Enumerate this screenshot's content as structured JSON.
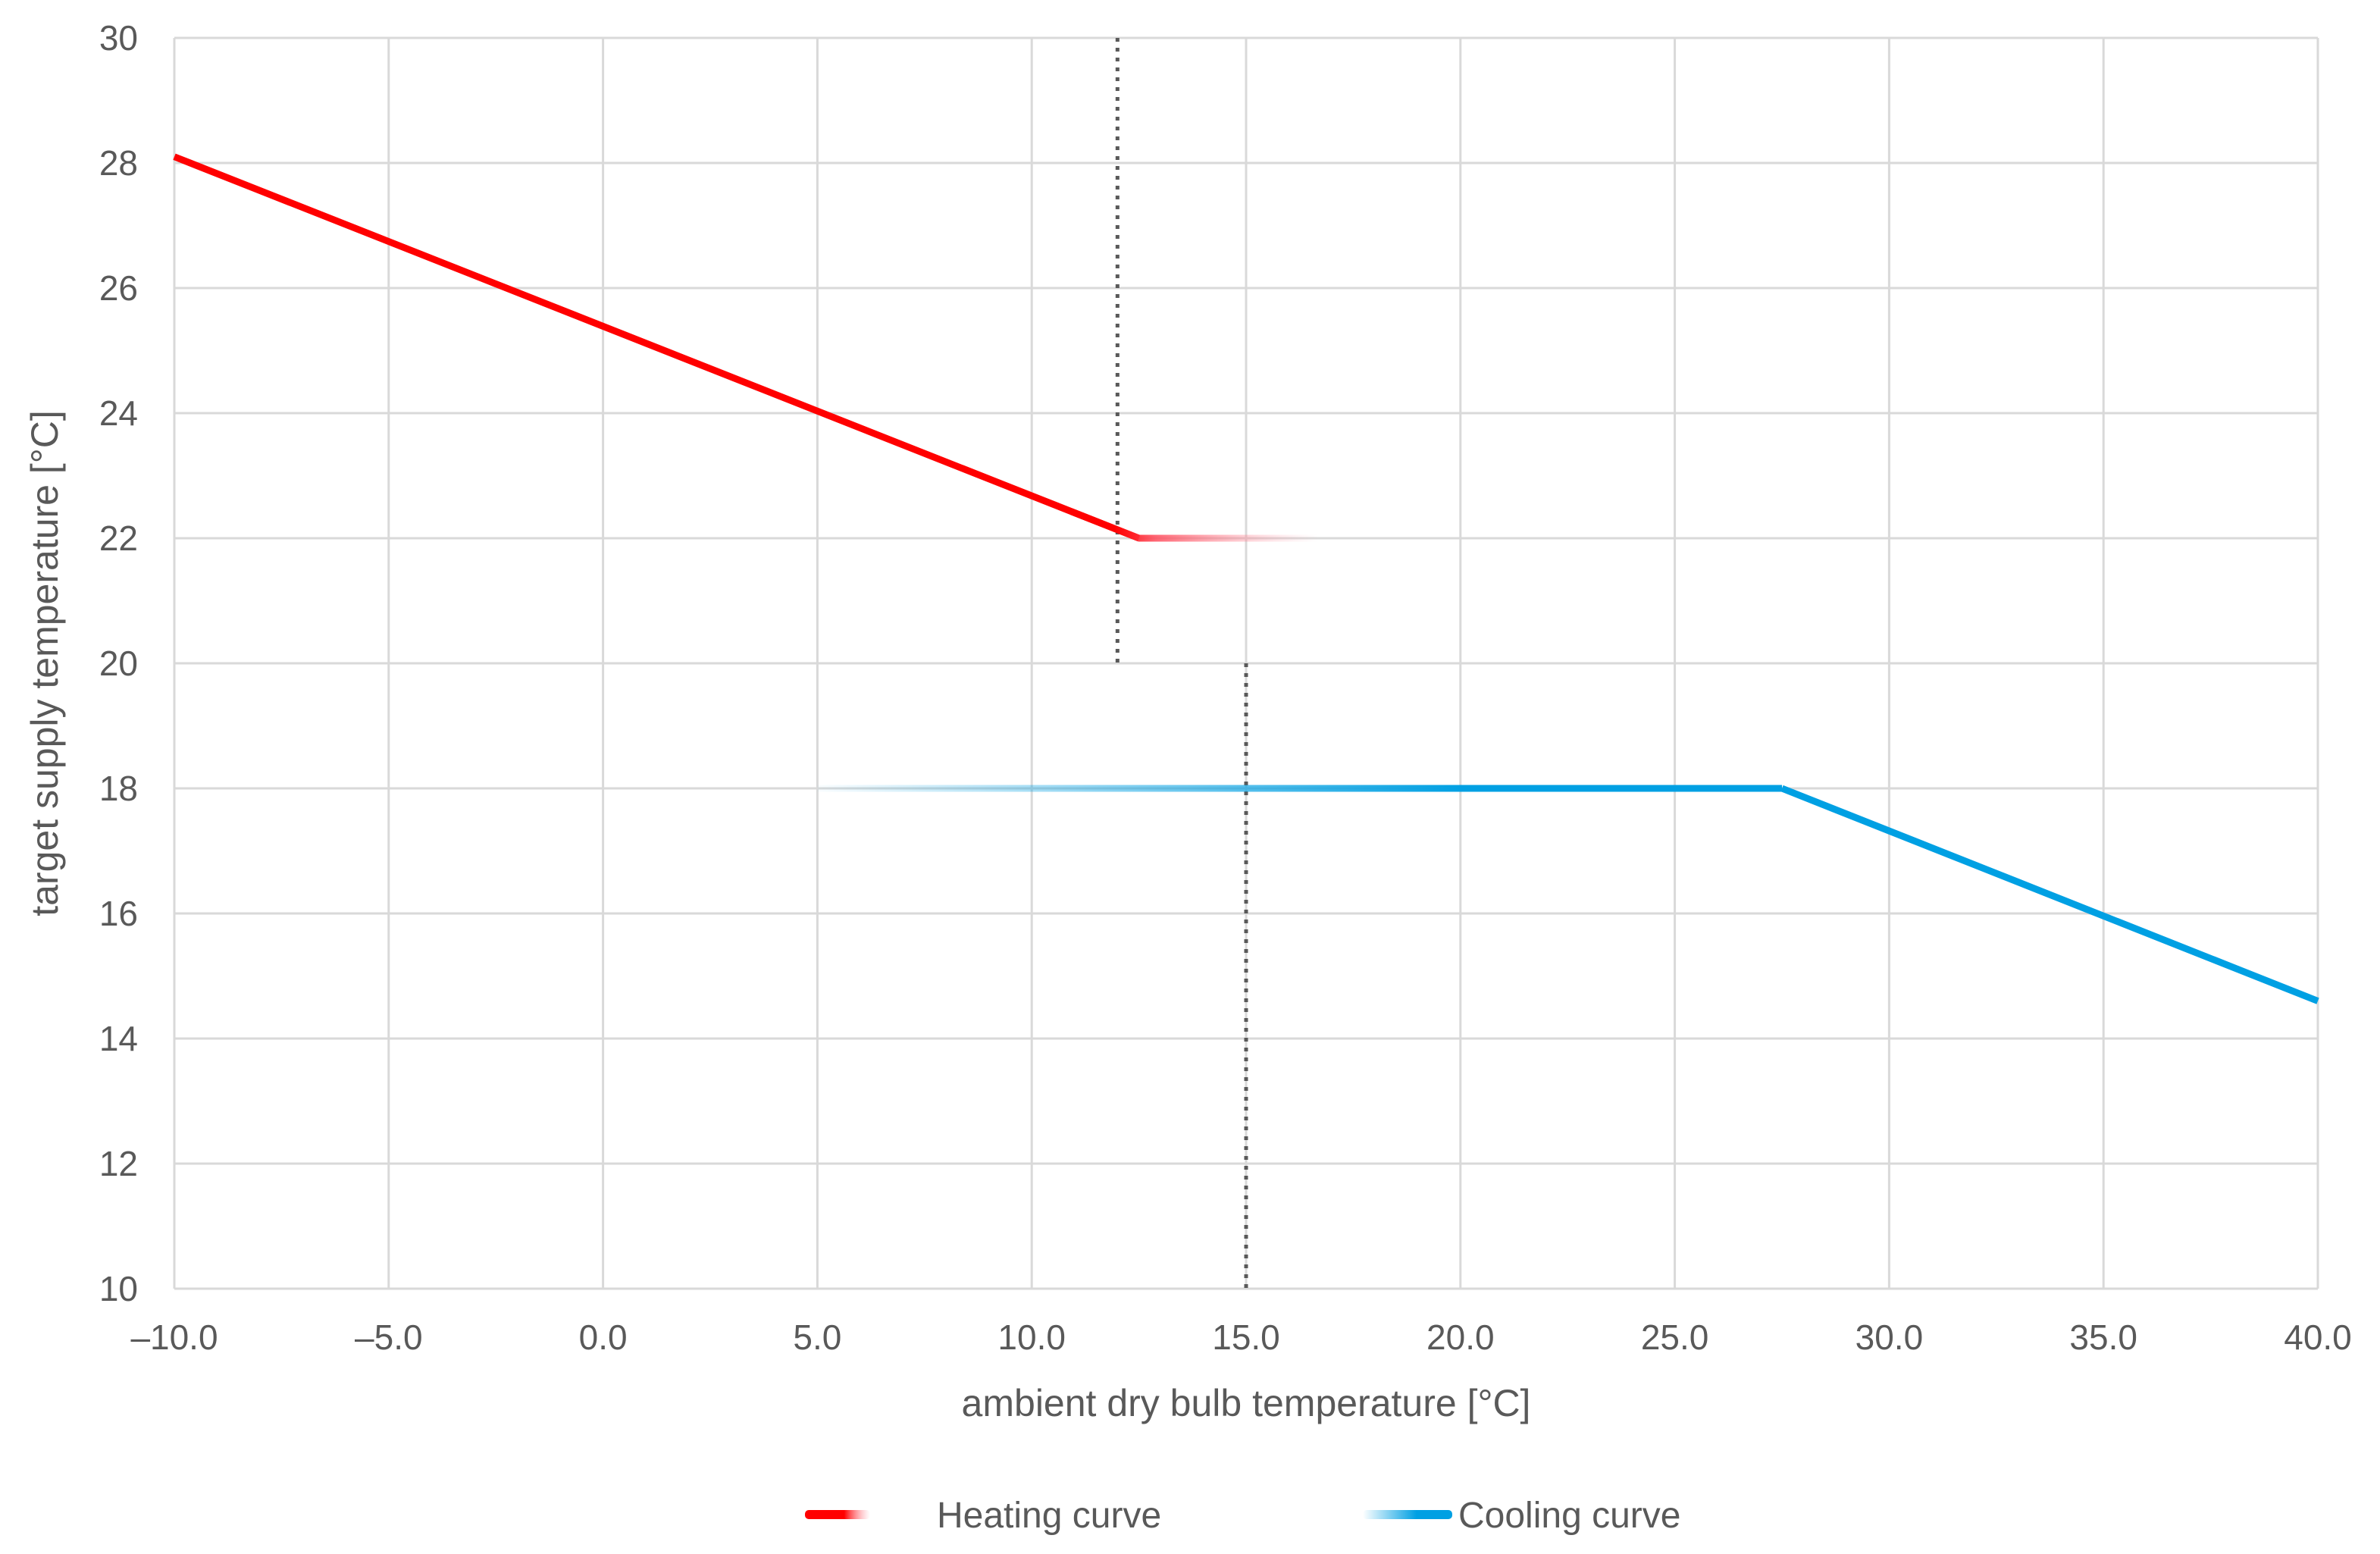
{
  "chart_data": {
    "type": "line",
    "title": "",
    "xlabel": "ambient dry bulb temperature [°C]",
    "ylabel": "target supply temperature [°C]",
    "xlim": [
      -10,
      40
    ],
    "ylim": [
      10,
      30
    ],
    "x_ticks": [
      -10,
      -5,
      0,
      5,
      10,
      15,
      20,
      25,
      30,
      35,
      40
    ],
    "x_tick_labels": [
      "–10.0",
      "–5.0",
      "0.0",
      "5.0",
      "10.0",
      "15.0",
      "20.0",
      "25.0",
      "30.0",
      "35.0",
      "40.0"
    ],
    "y_ticks": [
      10,
      12,
      14,
      16,
      18,
      20,
      22,
      24,
      26,
      28,
      30
    ],
    "y_tick_labels": [
      "10",
      "12",
      "14",
      "16",
      "18",
      "20",
      "22",
      "24",
      "26",
      "28",
      "30"
    ],
    "grid": true,
    "legend_position": "bottom",
    "series": [
      {
        "name": "Heating curve",
        "color": "#ff0000",
        "faded_tail": true,
        "points": [
          {
            "x": -10,
            "y": 28.1
          },
          {
            "x": 12.5,
            "y": 22.0
          },
          {
            "x": 17,
            "y": 22.0
          }
        ]
      },
      {
        "name": "Cooling curve",
        "color": "#00a0e3",
        "faded_head": true,
        "points": [
          {
            "x": 5,
            "y": 18.0
          },
          {
            "x": 27.5,
            "y": 18.0
          },
          {
            "x": 40,
            "y": 14.6
          }
        ]
      }
    ],
    "annotations": [
      {
        "type": "vertical-dotted-line",
        "x": 12,
        "y_from": 20,
        "y_to": 30
      },
      {
        "type": "vertical-dotted-line",
        "x": 15,
        "y_from": 10,
        "y_to": 20
      }
    ]
  }
}
